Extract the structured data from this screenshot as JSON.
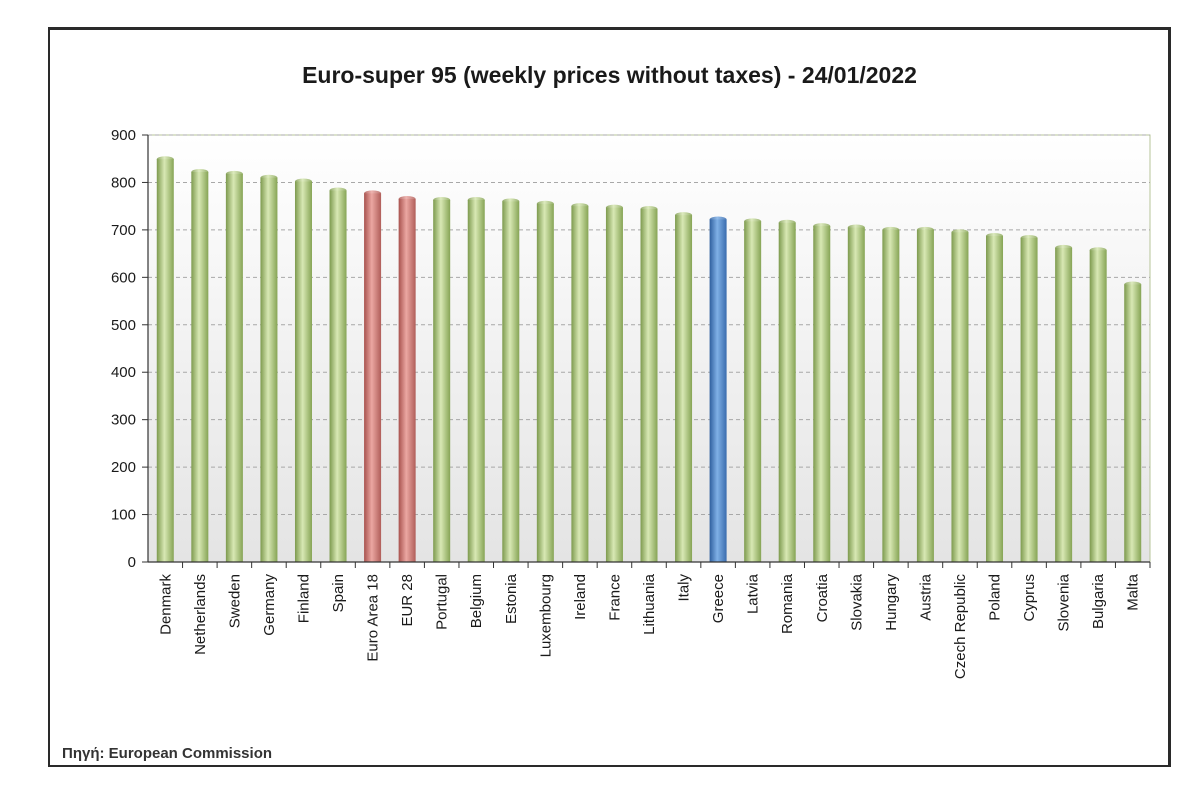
{
  "chart_data": {
    "type": "bar",
    "title": "Euro-super 95 (weekly prices without taxes) - 24/01/2022",
    "xlabel": "",
    "ylabel": "",
    "ylim": [
      0,
      900
    ],
    "yticks": [
      0,
      100,
      200,
      300,
      400,
      500,
      600,
      700,
      800,
      900
    ],
    "grid": "horizontal dashed",
    "categories": [
      "Denmark",
      "Netherlands",
      "Sweden",
      "Germany",
      "Finland",
      "Spain",
      "Euro Area 18",
      "EUR 28",
      "Portugal",
      "Belgium",
      "Estonia",
      "Luxembourg",
      "Ireland",
      "France",
      "Lithuania",
      "Italy",
      "Greece",
      "Latvia",
      "Romania",
      "Croatia",
      "Slovakia",
      "Hungary",
      "Austria",
      "Czech Republic",
      "Poland",
      "Cyprus",
      "Slovenia",
      "Bulgaria",
      "Malta"
    ],
    "values": [
      849,
      822,
      818,
      810,
      802,
      783,
      777,
      765,
      763,
      763,
      760,
      755,
      750,
      747,
      744,
      731,
      722,
      718,
      715,
      708,
      705,
      700,
      700,
      695,
      687,
      683,
      662,
      657,
      585
    ],
    "highlight": {
      "Euro Area 18": "aggregate",
      "EUR 28": "aggregate",
      "Greece": "focus"
    },
    "colors": {
      "default": "#b5cc82",
      "aggregate": "#cf7b76",
      "focus": "#4f86c8"
    }
  },
  "source_note": "Πηγή: European Commission"
}
